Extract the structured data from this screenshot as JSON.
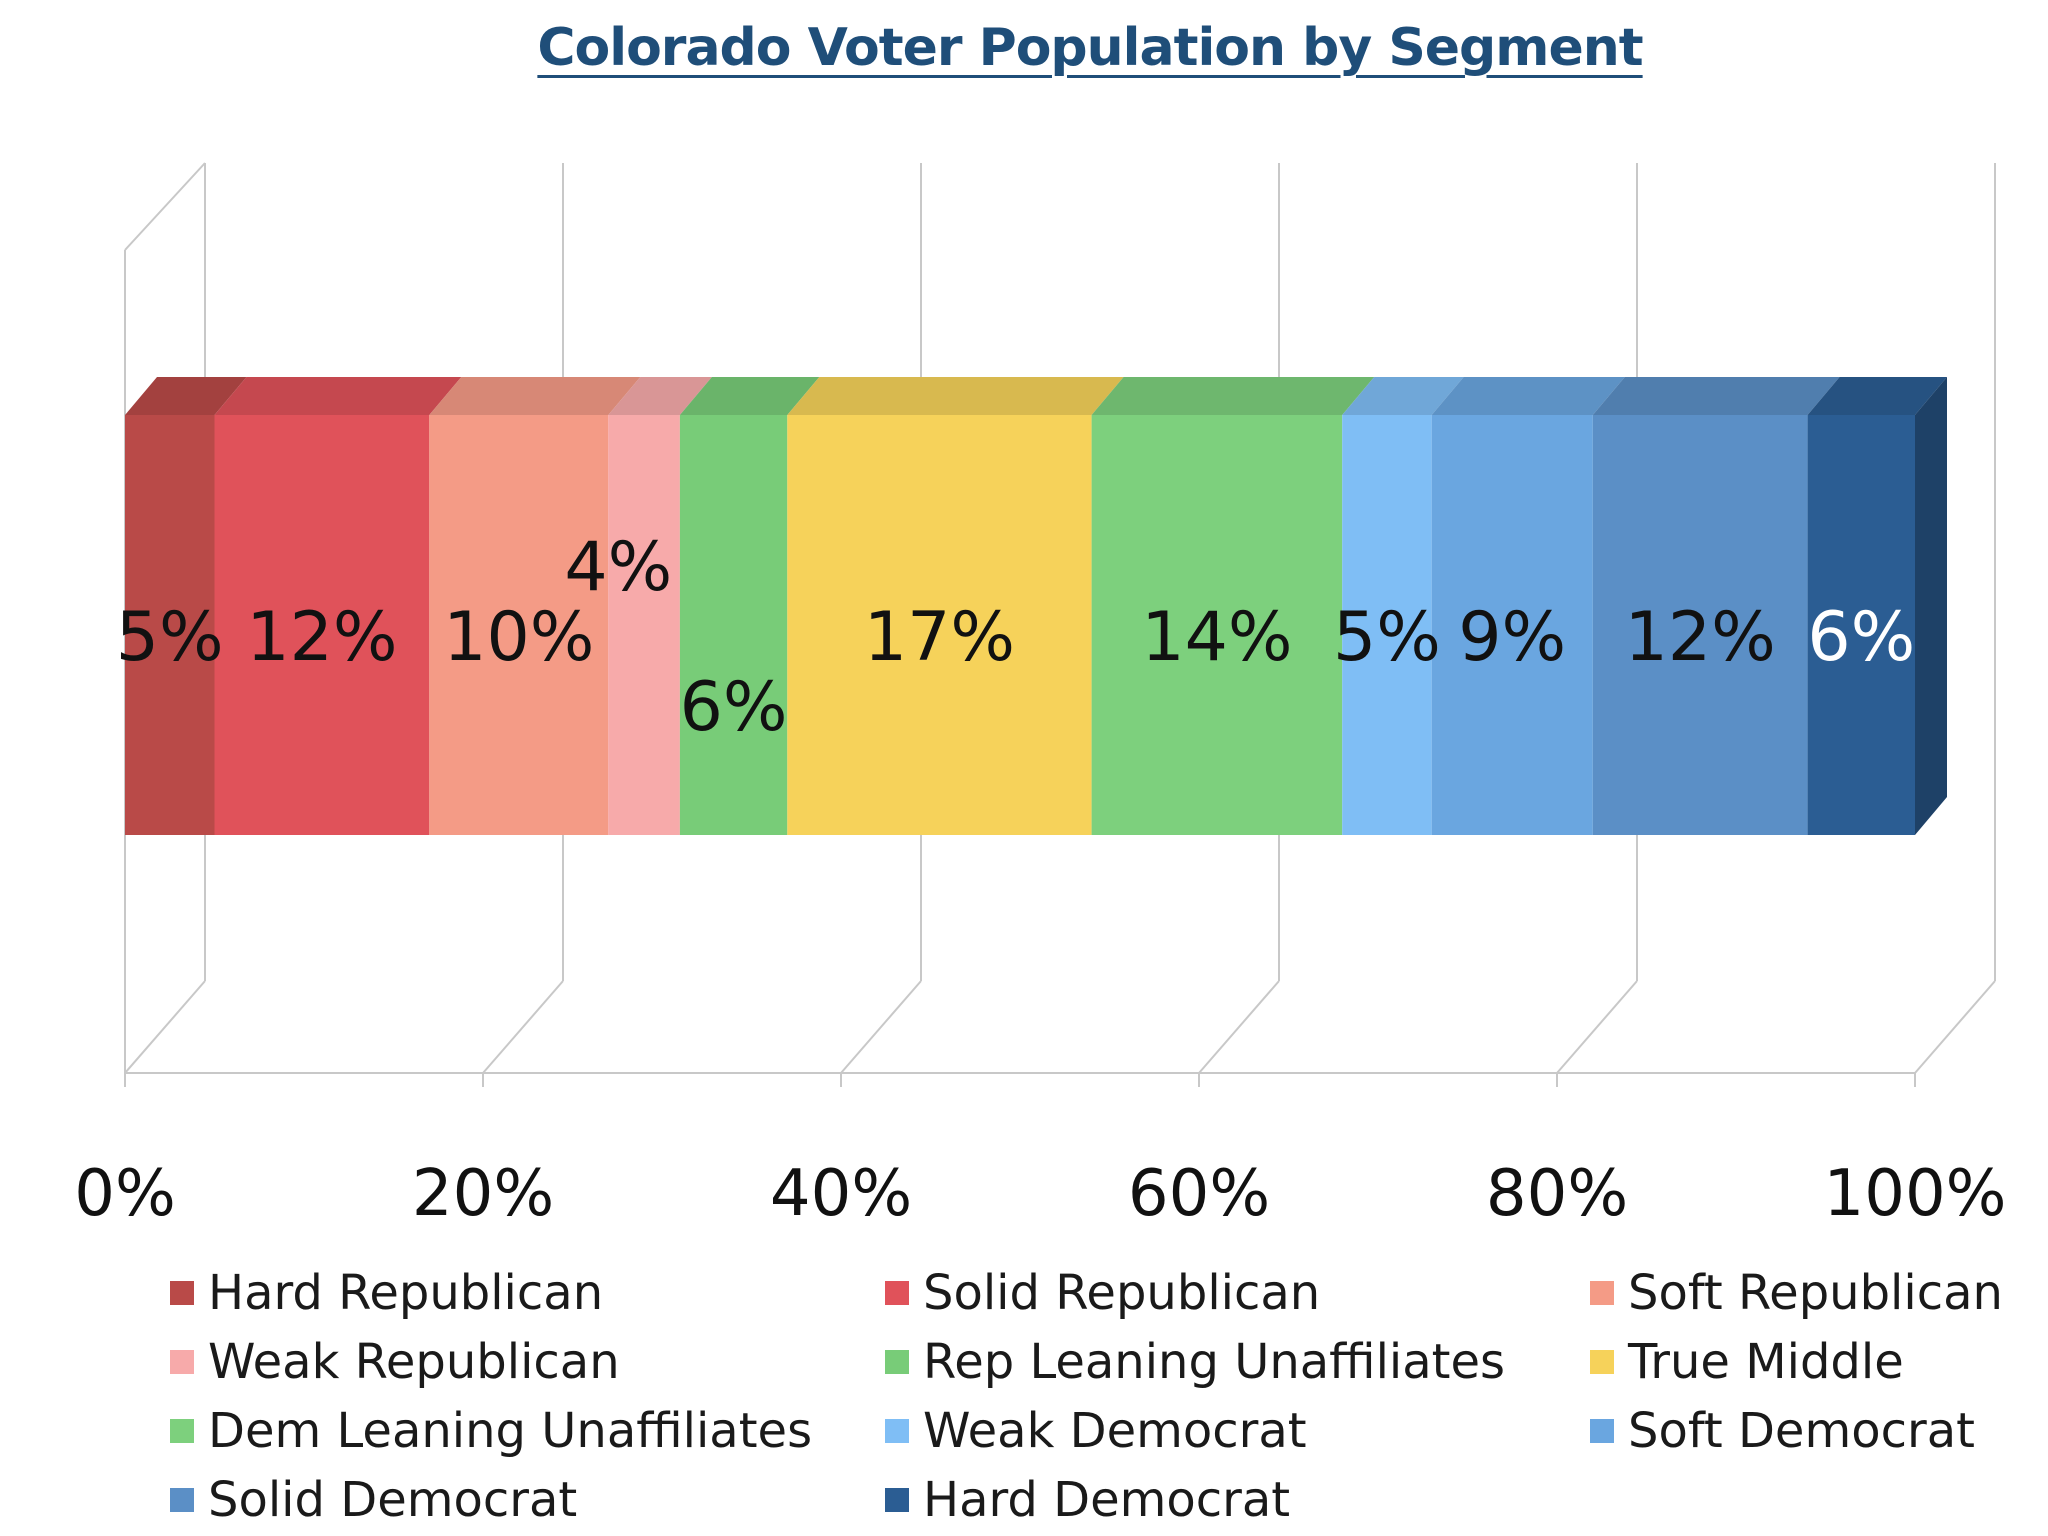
{
  "chart_data": {
    "type": "bar",
    "orientation": "horizontal",
    "stacked": true,
    "style": "3d",
    "title": "Colorado Voter Population by Segment",
    "xlim": [
      0,
      100
    ],
    "x_ticks": [
      "0%",
      "20%",
      "40%",
      "60%",
      "80%",
      "100%"
    ],
    "grid": true,
    "legend_position": "bottom",
    "series": [
      {
        "name": "Hard Republican",
        "value": 5,
        "label": "5%",
        "color": "#b94a48",
        "label_color": "#111111"
      },
      {
        "name": "Solid Republican",
        "value": 12,
        "label": "12%",
        "color": "#e0525a",
        "label_color": "#111111"
      },
      {
        "name": "Soft Republican",
        "value": 10,
        "label": "10%",
        "color": "#f49b86",
        "label_color": "#111111"
      },
      {
        "name": "Weak Republican",
        "value": 4,
        "label": "4%",
        "color": "#f7aaaa",
        "label_color": "#111111"
      },
      {
        "name": "Rep Leaning Unaffiliates",
        "value": 6,
        "label": "6%",
        "color": "#78cc78",
        "label_color": "#111111"
      },
      {
        "name": "True Middle",
        "value": 17,
        "label": "17%",
        "color": "#f6d25a",
        "label_color": "#111111"
      },
      {
        "name": "Dem Leaning Unaffiliates",
        "value": 14,
        "label": "14%",
        "color": "#7dd07d",
        "label_color": "#111111"
      },
      {
        "name": "Weak Democrat",
        "value": 5,
        "label": "5%",
        "color": "#7fbef5",
        "label_color": "#111111"
      },
      {
        "name": "Soft Democrat",
        "value": 9,
        "label": "9%",
        "color": "#6aa6e0",
        "label_color": "#111111"
      },
      {
        "name": "Solid Democrat",
        "value": 12,
        "label": "12%",
        "color": "#5b8fc6",
        "label_color": "#111111"
      },
      {
        "name": "Hard Democrat",
        "value": 6,
        "label": "6%",
        "color": "#2b5d93",
        "label_color": "#ffffff"
      }
    ]
  }
}
